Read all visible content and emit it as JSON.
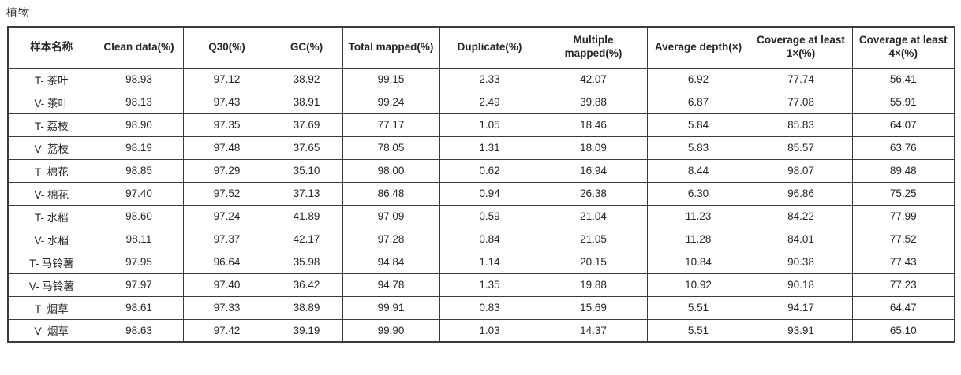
{
  "title": "植物",
  "colors": {
    "border": "#3a3a3a",
    "text": "#262626",
    "background": "#ffffff"
  },
  "table": {
    "columns": [
      "样本名称",
      "Clean data(%)",
      "Q30(%)",
      "GC(%)",
      "Total mapped(%)",
      "Duplicate(%)",
      "Multiple mapped(%)",
      "Average depth(×)",
      "Coverage at least 1×(%)",
      "Coverage at least 4×(%)"
    ],
    "rows": [
      [
        "T- 茶叶",
        "98.93",
        "97.12",
        "38.92",
        "99.15",
        "2.33",
        "42.07",
        "6.92",
        "77.74",
        "56.41"
      ],
      [
        "V- 茶叶",
        "98.13",
        "97.43",
        "38.91",
        "99.24",
        "2.49",
        "39.88",
        "6.87",
        "77.08",
        "55.91"
      ],
      [
        "T- 荔枝",
        "98.90",
        "97.35",
        "37.69",
        "77.17",
        "1.05",
        "18.46",
        "5.84",
        "85.83",
        "64.07"
      ],
      [
        "V- 荔枝",
        "98.19",
        "97.48",
        "37.65",
        "78.05",
        "1.31",
        "18.09",
        "5.83",
        "85.57",
        "63.76"
      ],
      [
        "T- 棉花",
        "98.85",
        "97.29",
        "35.10",
        "98.00",
        "0.62",
        "16.94",
        "8.44",
        "98.07",
        "89.48"
      ],
      [
        "V- 棉花",
        "97.40",
        "97.52",
        "37.13",
        "86.48",
        "0.94",
        "26.38",
        "6.30",
        "96.86",
        "75.25"
      ],
      [
        "T- 水稻",
        "98.60",
        "97.24",
        "41.89",
        "97.09",
        "0.59",
        "21.04",
        "11.23",
        "84.22",
        "77.99"
      ],
      [
        "V- 水稻",
        "98.11",
        "97.37",
        "42.17",
        "97.28",
        "0.84",
        "21.05",
        "11.28",
        "84.01",
        "77.52"
      ],
      [
        "T- 马铃薯",
        "97.95",
        "96.64",
        "35.98",
        "94.84",
        "1.14",
        "20.15",
        "10.84",
        "90.38",
        "77.43"
      ],
      [
        "V- 马铃薯",
        "97.97",
        "97.40",
        "36.42",
        "94.78",
        "1.35",
        "19.88",
        "10.92",
        "90.18",
        "77.23"
      ],
      [
        "T- 烟草",
        "98.61",
        "97.33",
        "38.89",
        "99.91",
        "0.83",
        "15.69",
        "5.51",
        "94.17",
        "64.47"
      ],
      [
        "V- 烟草",
        "98.63",
        "97.42",
        "39.19",
        "99.90",
        "1.03",
        "14.37",
        "5.51",
        "93.91",
        "65.10"
      ]
    ]
  }
}
